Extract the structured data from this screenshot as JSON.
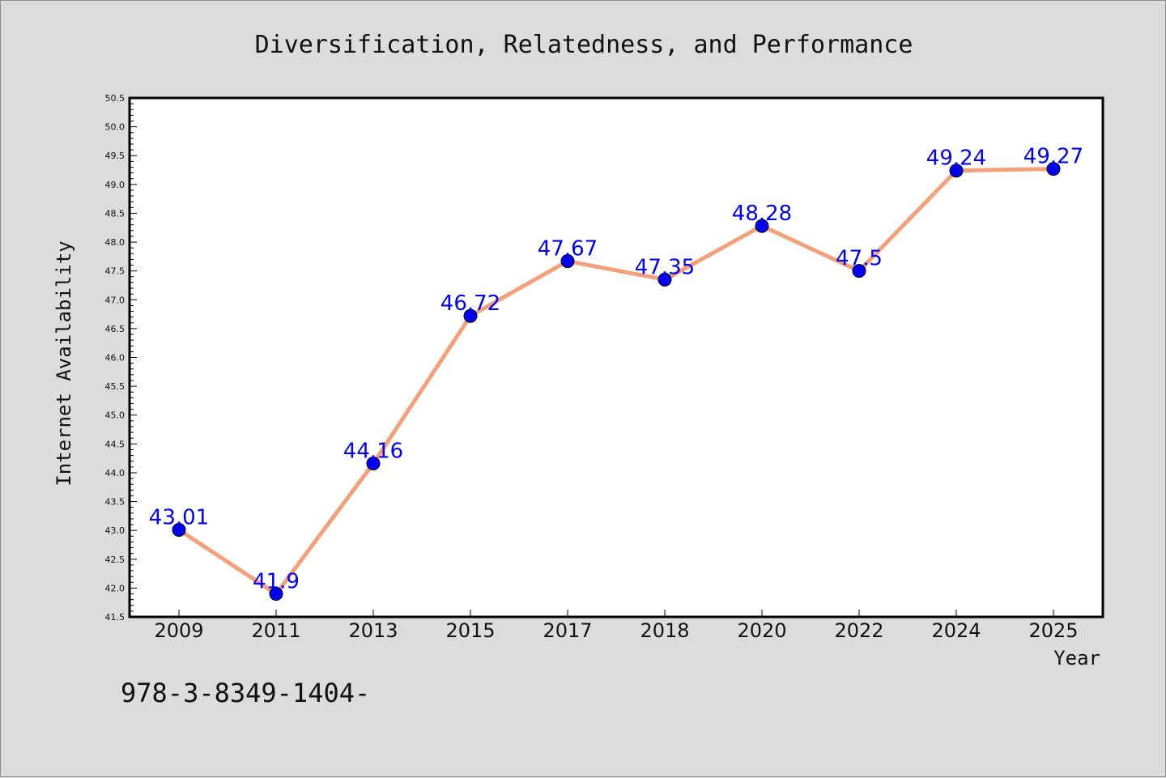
{
  "chart_data": {
    "type": "line",
    "title": "Diversification, Relatedness, and Performance",
    "xlabel": "Year",
    "ylabel": "Internet Availability",
    "categories": [
      "2009",
      "2011",
      "2013",
      "2015",
      "2017",
      "2018",
      "2020",
      "2022",
      "2024",
      "2025"
    ],
    "series": [
      {
        "values": [
          43.01,
          41.9,
          44.16,
          46.72,
          47.67,
          47.35,
          48.28,
          47.5,
          49.24,
          49.27
        ],
        "data_labels": [
          "43.01",
          "41.9",
          "44.16",
          "46.72",
          "47.67",
          "47.35",
          "48.28",
          "47.5",
          "49.24",
          "49.27"
        ]
      }
    ],
    "ylim": [
      41.5,
      50.5
    ],
    "yticks": [
      "41.5",
      "42.0",
      "42.5",
      "43.0",
      "43.5",
      "44.0",
      "44.5",
      "45.0",
      "45.5",
      "46.0",
      "46.5",
      "47.0",
      "47.5",
      "48.0",
      "48.5",
      "49.0",
      "49.5",
      "50.0",
      "50.5"
    ],
    "grid": false,
    "colors": {
      "line": "#f4a07a",
      "marker": "#0000ee",
      "data_label": "#0000ff",
      "figure_background": "#dcdcdc",
      "plot_background": "#ffffff"
    }
  },
  "footer": {
    "text": "978-3-8349-1404-"
  }
}
